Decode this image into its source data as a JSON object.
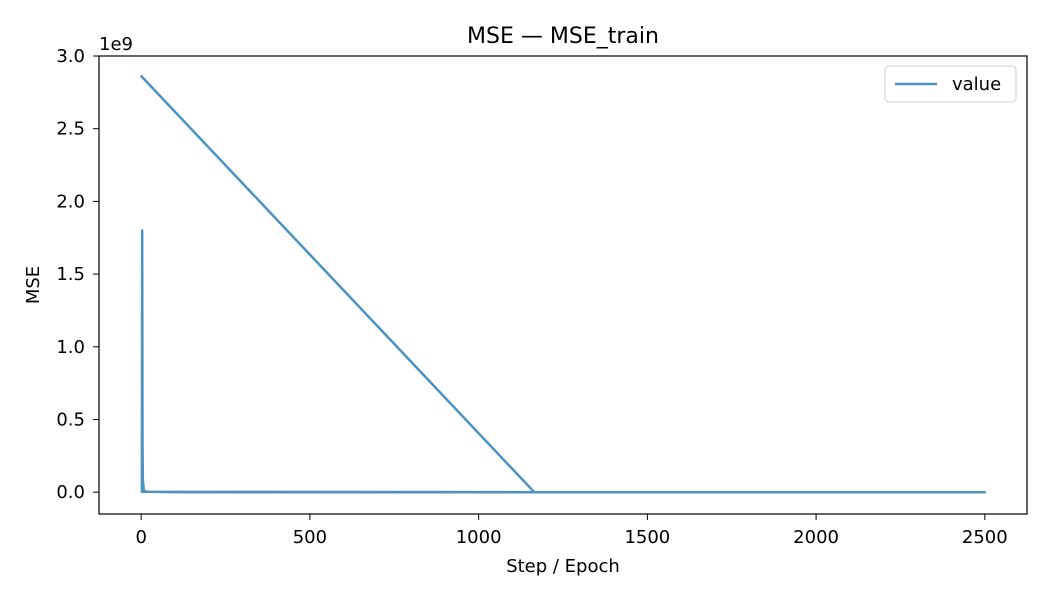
{
  "chart_data": {
    "type": "line",
    "title": "MSE — MSE_train",
    "xlabel": "Step / Epoch",
    "ylabel": "MSE",
    "y_offset_label": "1e9",
    "y_scale_factor": 1000000000,
    "xlim": [
      -125,
      2625
    ],
    "ylim": [
      -0.15,
      3.0
    ],
    "x_ticks": [
      0,
      500,
      1000,
      1500,
      2000,
      2500
    ],
    "x_tick_labels": [
      "0",
      "500",
      "1000",
      "1500",
      "2000",
      "2500"
    ],
    "y_ticks": [
      0.0,
      0.5,
      1.0,
      1.5,
      2.0,
      2.5,
      3.0
    ],
    "y_tick_labels": [
      "0.0",
      "0.5",
      "1.0",
      "1.5",
      "2.0",
      "2.5",
      "3.0"
    ],
    "grid": false,
    "legend_position": "top-right",
    "series": [
      {
        "name": "value",
        "color": "#1f77b4",
        "points": [
          [
            1,
            2.86
          ],
          [
            1165,
            0.0
          ],
          [
            2,
            0.003
          ],
          [
            3,
            1.8
          ],
          [
            4,
            0.3
          ],
          [
            5,
            0.08
          ],
          [
            8,
            0.01
          ],
          [
            20,
            0.002
          ],
          [
            100,
            0.0
          ],
          [
            1165,
            0.0
          ],
          [
            2500,
            0.0
          ]
        ]
      }
    ]
  }
}
